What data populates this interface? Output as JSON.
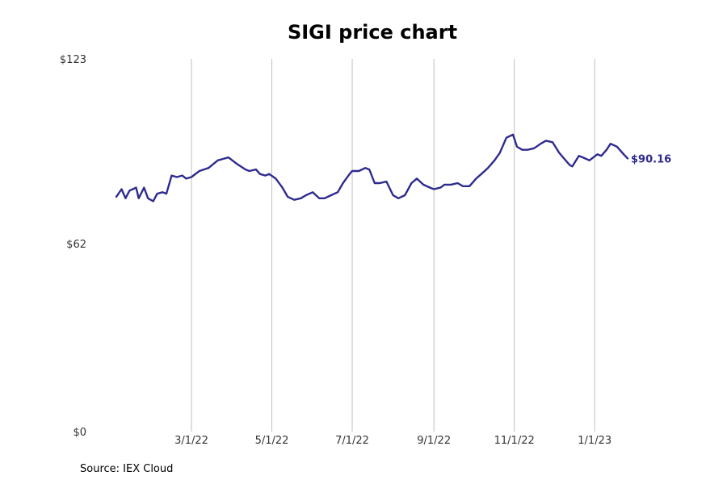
{
  "source": "Source: IEX Cloud",
  "colors": {
    "line": "#2e2b8f",
    "grid": "#c0c0c0",
    "text": "#333333"
  },
  "chart_data": {
    "type": "line",
    "title": "SIGI price chart",
    "xlabel": "",
    "ylabel": "",
    "ylim": [
      0,
      123
    ],
    "y_ticks": [
      {
        "value": 0,
        "label": "$0"
      },
      {
        "value": 62,
        "label": "$62"
      },
      {
        "value": 123,
        "label": "$123"
      }
    ],
    "x_range": [
      "2022-01-03",
      "2023-01-26"
    ],
    "x_ticks": [
      {
        "date": "2022-03-01",
        "label": "3/1/22"
      },
      {
        "date": "2022-05-01",
        "label": "5/1/22"
      },
      {
        "date": "2022-07-01",
        "label": "7/1/22"
      },
      {
        "date": "2022-09-01",
        "label": "9/1/22"
      },
      {
        "date": "2022-11-01",
        "label": "11/1/22"
      },
      {
        "date": "2023-01-01",
        "label": "1/1/23"
      }
    ],
    "vertical_grid": true,
    "end_label": "$90.16",
    "series": [
      {
        "points": [
          [
            "2022-01-03",
            77.5
          ],
          [
            "2022-01-07",
            80.0
          ],
          [
            "2022-01-10",
            77.0
          ],
          [
            "2022-01-13",
            79.5
          ],
          [
            "2022-01-18",
            80.5
          ],
          [
            "2022-01-20",
            77.0
          ],
          [
            "2022-01-24",
            80.5
          ],
          [
            "2022-01-27",
            77.0
          ],
          [
            "2022-01-31",
            76.0
          ],
          [
            "2022-02-03",
            78.5
          ],
          [
            "2022-02-07",
            79.0
          ],
          [
            "2022-02-10",
            78.5
          ],
          [
            "2022-02-14",
            84.5
          ],
          [
            "2022-02-18",
            84.0
          ],
          [
            "2022-02-22",
            84.5
          ],
          [
            "2022-02-25",
            83.5
          ],
          [
            "2022-03-01",
            84.0
          ],
          [
            "2022-03-07",
            86.0
          ],
          [
            "2022-03-14",
            87.0
          ],
          [
            "2022-03-21",
            89.5
          ],
          [
            "2022-03-25",
            90.0
          ],
          [
            "2022-03-29",
            90.5
          ],
          [
            "2022-04-04",
            88.5
          ],
          [
            "2022-04-11",
            86.5
          ],
          [
            "2022-04-14",
            86.0
          ],
          [
            "2022-04-19",
            86.5
          ],
          [
            "2022-04-22",
            85.0
          ],
          [
            "2022-04-26",
            84.5
          ],
          [
            "2022-04-29",
            85.0
          ],
          [
            "2022-05-04",
            83.5
          ],
          [
            "2022-05-09",
            80.5
          ],
          [
            "2022-05-13",
            77.5
          ],
          [
            "2022-05-18",
            76.5
          ],
          [
            "2022-05-23",
            77.0
          ],
          [
            "2022-05-27",
            78.0
          ],
          [
            "2022-06-01",
            79.0
          ],
          [
            "2022-06-06",
            77.0
          ],
          [
            "2022-06-10",
            77.0
          ],
          [
            "2022-06-15",
            78.0
          ],
          [
            "2022-06-20",
            79.0
          ],
          [
            "2022-06-24",
            82.0
          ],
          [
            "2022-06-29",
            85.0
          ],
          [
            "2022-07-01",
            86.0
          ],
          [
            "2022-07-06",
            86.0
          ],
          [
            "2022-07-11",
            87.0
          ],
          [
            "2022-07-14",
            86.5
          ],
          [
            "2022-07-18",
            82.0
          ],
          [
            "2022-07-22",
            82.0
          ],
          [
            "2022-07-27",
            82.5
          ],
          [
            "2022-08-01",
            78.0
          ],
          [
            "2022-08-05",
            77.0
          ],
          [
            "2022-08-10",
            78.0
          ],
          [
            "2022-08-15",
            82.0
          ],
          [
            "2022-08-19",
            83.5
          ],
          [
            "2022-08-24",
            81.5
          ],
          [
            "2022-08-29",
            80.5
          ],
          [
            "2022-09-01",
            80.0
          ],
          [
            "2022-09-06",
            80.5
          ],
          [
            "2022-09-09",
            81.5
          ],
          [
            "2022-09-14",
            81.5
          ],
          [
            "2022-09-19",
            82.0
          ],
          [
            "2022-09-23",
            81.0
          ],
          [
            "2022-09-28",
            81.0
          ],
          [
            "2022-10-03",
            83.5
          ],
          [
            "2022-10-07",
            85.0
          ],
          [
            "2022-10-12",
            87.0
          ],
          [
            "2022-10-17",
            89.5
          ],
          [
            "2022-10-21",
            92.0
          ],
          [
            "2022-10-26",
            97.0
          ],
          [
            "2022-10-31",
            98.0
          ],
          [
            "2022-11-03",
            94.0
          ],
          [
            "2022-11-07",
            93.0
          ],
          [
            "2022-11-11",
            93.0
          ],
          [
            "2022-11-16",
            93.5
          ],
          [
            "2022-11-21",
            95.0
          ],
          [
            "2022-11-25",
            96.0
          ],
          [
            "2022-11-30",
            95.5
          ],
          [
            "2022-12-05",
            92.0
          ],
          [
            "2022-12-09",
            90.0
          ],
          [
            "2022-12-13",
            88.0
          ],
          [
            "2022-12-15",
            87.5
          ],
          [
            "2022-12-20",
            91.0
          ],
          [
            "2022-12-23",
            90.5
          ],
          [
            "2022-12-28",
            89.5
          ],
          [
            "2023-01-03",
            91.5
          ],
          [
            "2023-01-06",
            91.0
          ],
          [
            "2023-01-10",
            93.0
          ],
          [
            "2023-01-13",
            95.0
          ],
          [
            "2023-01-18",
            94.0
          ],
          [
            "2023-01-23",
            91.5
          ],
          [
            "2023-01-26",
            90.16
          ]
        ]
      }
    ]
  }
}
